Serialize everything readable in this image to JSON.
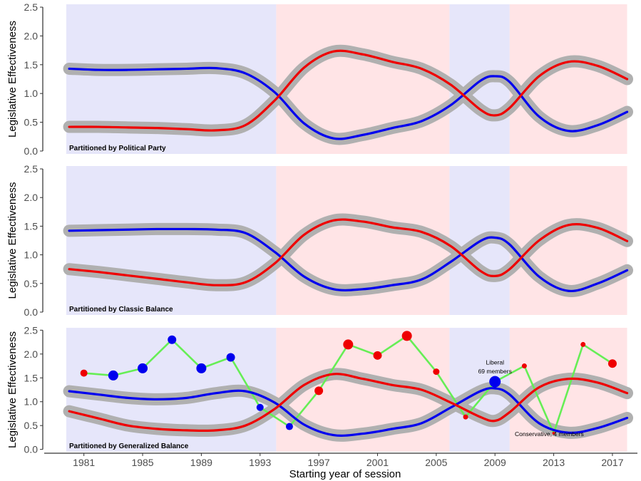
{
  "chart_data": {
    "type": "line",
    "xlabel": "Starting year of session",
    "ylabel": "Legislative Effectiveness",
    "xlim": [
      1978.2,
      2018.8
    ],
    "ylim": [
      -0.05,
      2.55
    ],
    "x_ticks": [
      1981,
      1985,
      1989,
      1993,
      1997,
      2001,
      2005,
      2009,
      2013,
      2017
    ],
    "y_ticks": [
      0.0,
      0.5,
      1.0,
      1.5,
      2.0,
      2.5
    ],
    "y_tick_labels": [
      "0.0",
      "0.5",
      "1.0",
      "1.5",
      "2.0",
      "2.5"
    ],
    "colors": {
      "blue_series": "#0000ee",
      "red_series": "#ee0000",
      "band": "#b0b0b0",
      "blue_period": "#e6e6fa",
      "red_period": "#ffe4e6",
      "green_series": "#66ee55"
    },
    "background_periods": [
      {
        "start": 1979.8,
        "end": 1994.1,
        "party": "blue"
      },
      {
        "start": 1994.1,
        "end": 2005.9,
        "party": "red"
      },
      {
        "start": 2005.9,
        "end": 2010.0,
        "party": "blue"
      },
      {
        "start": 2010.0,
        "end": 2018.0,
        "party": "red"
      }
    ],
    "panels": [
      {
        "label": "Partitioned by Political Party",
        "series": [
          {
            "color": "blue",
            "x": [
              1980,
              1982,
              1984,
              1986,
              1988,
              1990,
              1992,
              1994,
              1996,
              1998,
              2000,
              2002,
              2004,
              2006,
              2008,
              2009,
              2010,
              2012,
              2014,
              2016,
              2018
            ],
            "values": [
              1.43,
              1.41,
              1.41,
              1.42,
              1.43,
              1.44,
              1.35,
              1.02,
              0.48,
              0.22,
              0.28,
              0.4,
              0.52,
              0.8,
              1.22,
              1.3,
              1.2,
              0.6,
              0.35,
              0.45,
              0.68
            ]
          },
          {
            "color": "red",
            "x": [
              1980,
              1982,
              1984,
              1986,
              1988,
              1990,
              1992,
              1994,
              1996,
              1998,
              2000,
              2002,
              2004,
              2006,
              2008,
              2009,
              2010,
              2012,
              2014,
              2016,
              2018
            ],
            "values": [
              0.42,
              0.42,
              0.41,
              0.4,
              0.38,
              0.36,
              0.45,
              0.88,
              1.45,
              1.73,
              1.68,
              1.55,
              1.43,
              1.15,
              0.72,
              0.62,
              0.75,
              1.3,
              1.55,
              1.48,
              1.25
            ]
          }
        ]
      },
      {
        "label": "Partitioned by Classic Balance",
        "series": [
          {
            "color": "blue",
            "x": [
              1980,
              1982,
              1984,
              1986,
              1988,
              1990,
              1992,
              1994,
              1996,
              1998,
              2000,
              2002,
              2004,
              2006,
              2008,
              2009,
              2010,
              2012,
              2014,
              2016,
              2018
            ],
            "values": [
              1.42,
              1.43,
              1.44,
              1.45,
              1.45,
              1.44,
              1.38,
              1.05,
              0.62,
              0.4,
              0.4,
              0.47,
              0.57,
              0.88,
              1.24,
              1.3,
              1.18,
              0.62,
              0.37,
              0.5,
              0.73
            ]
          },
          {
            "color": "red",
            "x": [
              1980,
              1982,
              1984,
              1986,
              1988,
              1990,
              1992,
              1994,
              1996,
              1998,
              2000,
              2002,
              2004,
              2006,
              2008,
              2009,
              2010,
              2012,
              2014,
              2016,
              2018
            ],
            "values": [
              0.75,
              0.7,
              0.64,
              0.58,
              0.52,
              0.47,
              0.52,
              0.85,
              1.35,
              1.6,
              1.58,
              1.48,
              1.4,
              1.15,
              0.72,
              0.63,
              0.75,
              1.25,
              1.52,
              1.47,
              1.24
            ]
          }
        ]
      },
      {
        "label": "Partitioned by Generalized Balance",
        "series": [
          {
            "color": "blue",
            "x": [
              1980,
              1982,
              1984,
              1986,
              1988,
              1990,
              1992,
              1994,
              1996,
              1998,
              2000,
              2002,
              2004,
              2006,
              2008,
              2009,
              2010,
              2012,
              2014,
              2016,
              2018
            ],
            "values": [
              1.22,
              1.15,
              1.08,
              1.05,
              1.08,
              1.18,
              1.22,
              0.98,
              0.52,
              0.3,
              0.33,
              0.43,
              0.55,
              0.88,
              1.22,
              1.28,
              1.15,
              0.55,
              0.35,
              0.45,
              0.66
            ]
          },
          {
            "color": "red",
            "x": [
              1980,
              1982,
              1984,
              1986,
              1988,
              1990,
              1992,
              1994,
              1996,
              1998,
              2000,
              2002,
              2004,
              2006,
              2008,
              2009,
              2010,
              2012,
              2014,
              2016,
              2018
            ],
            "values": [
              0.8,
              0.65,
              0.5,
              0.43,
              0.4,
              0.4,
              0.5,
              0.85,
              1.35,
              1.58,
              1.48,
              1.35,
              1.25,
              0.98,
              0.68,
              0.6,
              0.78,
              1.3,
              1.48,
              1.4,
              1.18
            ]
          }
        ],
        "session_points": [
          {
            "year": 1981,
            "value": 1.6,
            "color": "red",
            "size": 5
          },
          {
            "year": 1983,
            "value": 1.55,
            "color": "blue",
            "size": 7
          },
          {
            "year": 1985,
            "value": 1.7,
            "color": "blue",
            "size": 7
          },
          {
            "year": 1987,
            "value": 2.3,
            "color": "blue",
            "size": 6
          },
          {
            "year": 1989,
            "value": 1.7,
            "color": "blue",
            "size": 7
          },
          {
            "year": 1991,
            "value": 1.93,
            "color": "blue",
            "size": 6
          },
          {
            "year": 1993,
            "value": 0.88,
            "color": "blue",
            "size": 5
          },
          {
            "year": 1995,
            "value": 0.48,
            "color": "blue",
            "size": 5
          },
          {
            "year": 1997,
            "value": 1.23,
            "color": "red",
            "size": 6
          },
          {
            "year": 1999,
            "value": 2.2,
            "color": "red",
            "size": 7
          },
          {
            "year": 2001,
            "value": 1.97,
            "color": "red",
            "size": 6
          },
          {
            "year": 2003,
            "value": 2.38,
            "color": "red",
            "size": 7
          },
          {
            "year": 2005,
            "value": 1.63,
            "color": "red",
            "size": 4.5
          },
          {
            "year": 2007,
            "value": 0.68,
            "color": "red",
            "size": 3.5
          },
          {
            "year": 2009,
            "value": 1.42,
            "color": "blue",
            "size": 8
          },
          {
            "year": 2011,
            "value": 1.75,
            "color": "red",
            "size": 3.5
          },
          {
            "year": 2013,
            "value": 0.34,
            "color": "red",
            "size": 2
          },
          {
            "year": 2015,
            "value": 2.2,
            "color": "red",
            "size": 3.5
          },
          {
            "year": 2017,
            "value": 1.8,
            "color": "red",
            "size": 6
          }
        ],
        "annotations": [
          {
            "text": "Liberal",
            "x": 2009,
            "y": 1.78
          },
          {
            "text": "69 members",
            "x": 2009,
            "y": 1.59
          },
          {
            "text": "Conservative, 4 members",
            "x": 2012.7,
            "y": 0.28
          }
        ]
      }
    ]
  }
}
